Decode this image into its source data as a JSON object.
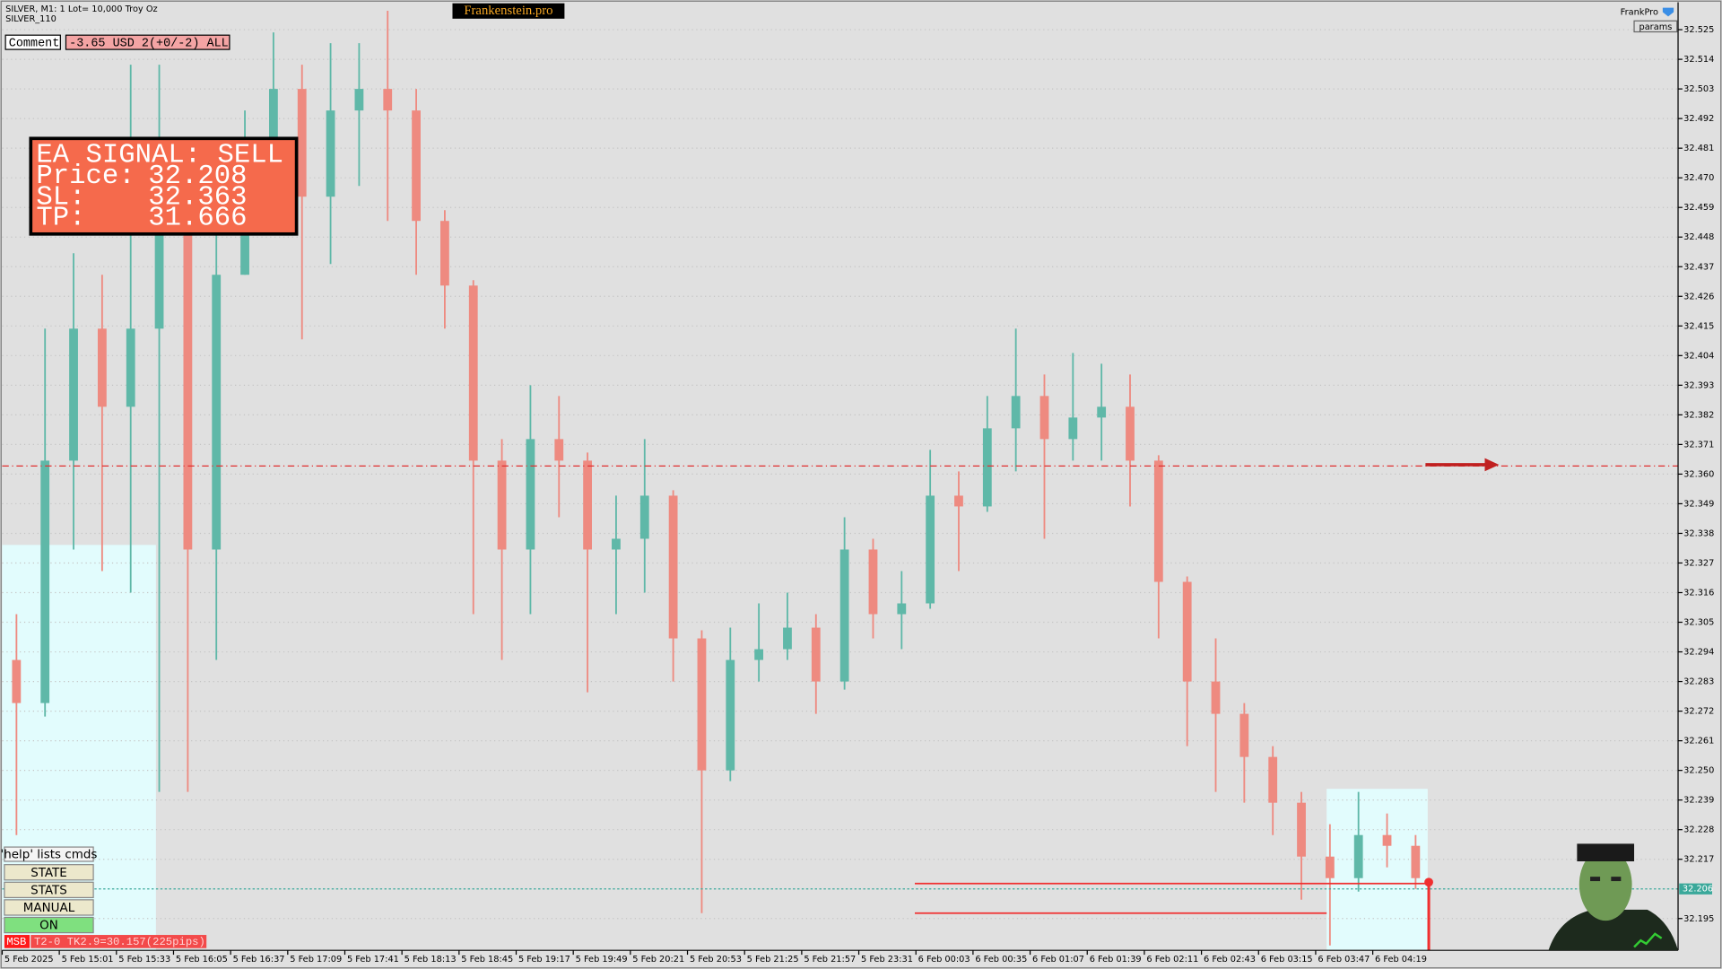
{
  "header": {
    "symbol": "SILVER, M1:  1 Lot= 10,000 Troy Oz",
    "template": "SILVER_110",
    "brand": "Frankenstein.pro",
    "account": "FrankPro",
    "params_button": "params"
  },
  "comment": {
    "label": "Comment",
    "value": "-3.65 USD 2(+0/-2) ALL"
  },
  "signal": {
    "title": "EA SIGNAL: SELL",
    "rows": [
      {
        "label": "Price:",
        "value": 32.208
      },
      {
        "label": "SL:",
        "value": 32.363
      },
      {
        "label": "TP:",
        "value": 31.666
      }
    ]
  },
  "buttons": [
    "'help' lists cmds",
    "STATE",
    "STATS",
    "MANUAL",
    "ON"
  ],
  "status": {
    "tag": "MSB",
    "text": "T2-0  TK2.9=30.157(225pips)"
  },
  "chart_data": {
    "type": "candlestick",
    "categories": [
      "5 Feb 2025",
      null,
      "5 Feb 15:01",
      null,
      "5 Feb 15:33",
      null,
      "5 Feb 16:05",
      null,
      "5 Feb 16:37",
      null,
      "5 Feb 17:09",
      null,
      "5 Feb 17:41",
      null,
      "5 Feb 18:13",
      null,
      "5 Feb 18:45",
      null,
      "5 Feb 19:17",
      null,
      "5 Feb 19:49",
      null,
      "5 Feb 20:21",
      null,
      "5 Feb 20:53",
      null,
      "5 Feb 21:25",
      null,
      "5 Feb 21:57",
      null,
      "5 Feb 23:31",
      null,
      "6 Feb 00:03",
      null,
      "6 Feb 00:35",
      null,
      "6 Feb 01:07",
      null,
      "6 Feb 01:39",
      null,
      "6 Feb 02:11",
      null,
      "6 Feb 02:43",
      null,
      "6 Feb 03:15",
      null,
      "6 Feb 03:47",
      null,
      "6 Feb 04:19",
      null
    ],
    "open": [
      32.291,
      32.275,
      32.365,
      32.414,
      32.385,
      32.414,
      32.463,
      32.332,
      32.434,
      32.475,
      32.503,
      32.463,
      32.495,
      32.503,
      32.495,
      32.454,
      32.43,
      32.365,
      32.332,
      32.373,
      32.365,
      32.332,
      32.336,
      32.352,
      32.299,
      32.25,
      32.291,
      32.295,
      32.303,
      32.283,
      32.332,
      32.308,
      32.312,
      32.352,
      32.348,
      32.377,
      32.389,
      32.373,
      32.381,
      32.385,
      32.365,
      32.32,
      32.283,
      32.271,
      32.255,
      32.238,
      32.218,
      32.21,
      32.226,
      32.222
    ],
    "high": [
      32.308,
      32.414,
      32.442,
      32.434,
      32.512,
      32.512,
      32.47,
      32.454,
      32.495,
      32.524,
      32.512,
      32.52,
      32.52,
      32.532,
      32.503,
      32.458,
      32.432,
      32.373,
      32.393,
      32.389,
      32.368,
      32.352,
      32.373,
      32.354,
      32.302,
      32.303,
      32.312,
      32.316,
      32.308,
      32.344,
      32.336,
      32.324,
      32.369,
      32.361,
      32.389,
      32.414,
      32.397,
      32.405,
      32.401,
      32.397,
      32.367,
      32.322,
      32.299,
      32.275,
      32.259,
      32.242,
      32.23,
      32.242,
      32.234,
      32.226
    ],
    "low": [
      32.226,
      32.27,
      32.332,
      32.324,
      32.316,
      32.242,
      32.242,
      32.291,
      32.434,
      32.454,
      32.41,
      32.438,
      32.467,
      32.454,
      32.434,
      32.414,
      32.308,
      32.291,
      32.308,
      32.344,
      32.279,
      32.308,
      32.316,
      32.283,
      32.197,
      32.246,
      32.283,
      32.291,
      32.271,
      32.28,
      32.299,
      32.295,
      32.31,
      32.324,
      32.346,
      32.361,
      32.336,
      32.365,
      32.365,
      32.348,
      32.299,
      32.259,
      32.242,
      32.238,
      32.226,
      32.202,
      32.185,
      32.205,
      32.214,
      32.206
    ],
    "close": [
      32.275,
      32.365,
      32.414,
      32.385,
      32.414,
      32.463,
      32.332,
      32.434,
      32.475,
      32.503,
      32.463,
      32.495,
      32.503,
      32.495,
      32.454,
      32.43,
      32.365,
      32.332,
      32.373,
      32.365,
      32.332,
      32.336,
      32.352,
      32.299,
      32.25,
      32.291,
      32.295,
      32.303,
      32.283,
      32.332,
      32.308,
      32.312,
      32.352,
      32.348,
      32.377,
      32.389,
      32.373,
      32.381,
      32.385,
      32.365,
      32.32,
      32.283,
      32.271,
      32.255,
      32.238,
      32.218,
      32.21,
      32.226,
      32.222,
      32.21
    ],
    "up_color": "#5fb8a8",
    "down_color": "#ee8a80",
    "ylim": [
      32.1832,
      32.5352
    ],
    "yticks": [
      32.525,
      32.514,
      32.503,
      32.492,
      32.481,
      {
        "value": 32.47,
        "label": "32.470"
      },
      32.459,
      32.448,
      32.437,
      32.426,
      32.415,
      32.404,
      32.393,
      32.382,
      32.371,
      {
        "value": 32.36,
        "label": "32.360"
      },
      32.349,
      32.338,
      32.327,
      32.316,
      32.305,
      32.294,
      32.283,
      32.272,
      32.261,
      {
        "value": 32.25,
        "label": "32.250"
      },
      32.239,
      32.228,
      32.217,
      32.195
    ],
    "grid": true,
    "bid": 32.206,
    "levels": [
      32.197
    ]
  }
}
